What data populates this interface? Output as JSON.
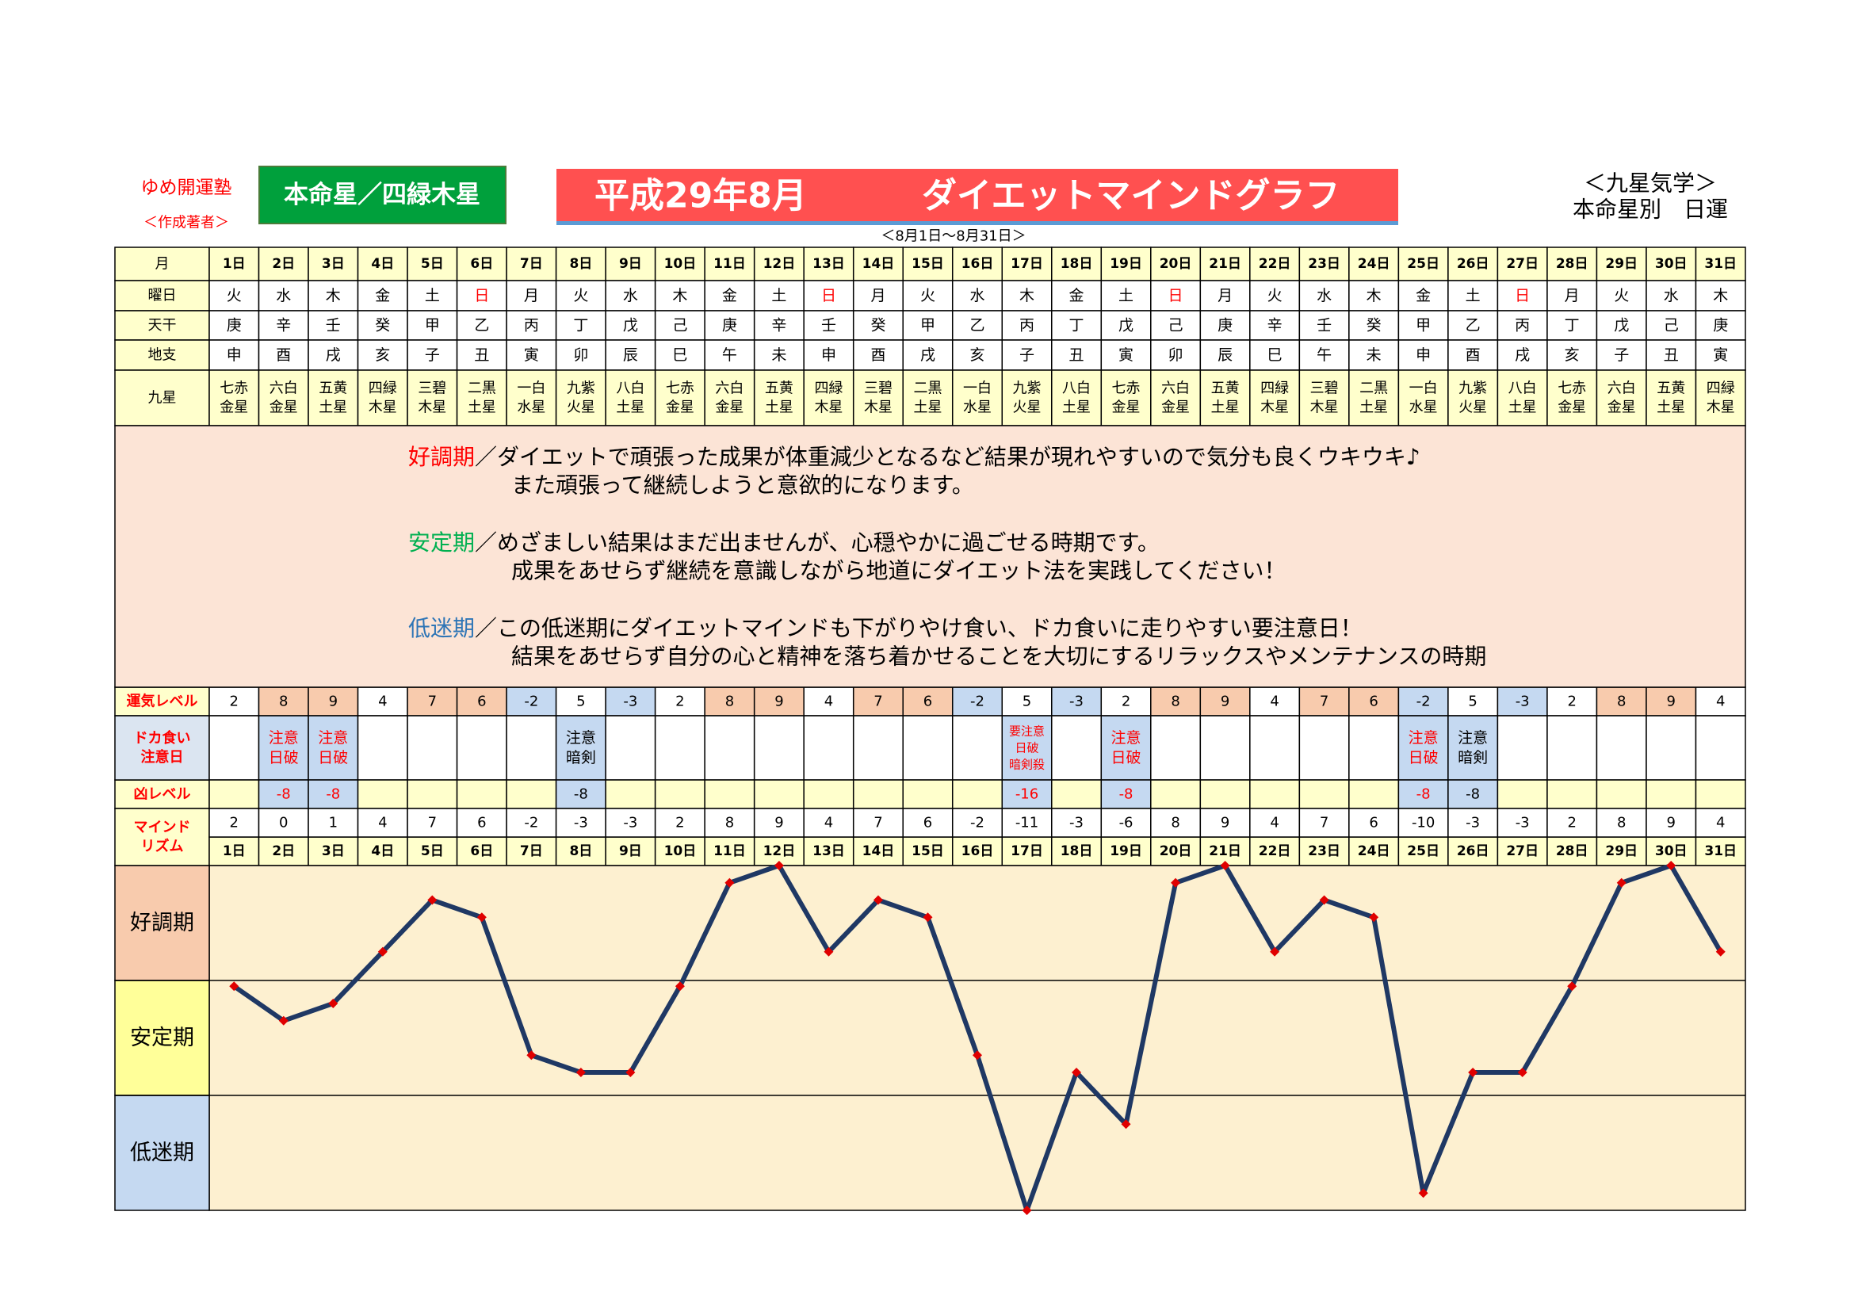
{
  "header": {
    "school": "ゆめ開運塾",
    "author": "＜作成著者＞",
    "honmei": "本命星／四緑木星",
    "period": "平成29年8月",
    "title": "ダイエットマインドグラフ",
    "range": "＜8月1日～8月31日＞",
    "system": "＜九星気学＞",
    "kind": "本命星別　日運"
  },
  "table": {
    "labels": {
      "day": "月",
      "weekday": "曜日",
      "stem": "天干",
      "branch": "地支",
      "star": "九星",
      "fortune": "運気レベル",
      "binge": [
        "ドカ食い",
        "注意日"
      ],
      "bad": "凶レベル",
      "mind": [
        "マインド",
        "リズム"
      ]
    },
    "weekdays": [
      "火",
      "水",
      "木",
      "金",
      "土",
      {
        "text": "日",
        "color": "#ff0000"
      },
      "月",
      "火",
      "水",
      "木",
      "金",
      "土",
      {
        "text": "日",
        "color": "#ff0000"
      },
      "月",
      "火",
      "水",
      "木",
      "金",
      "土",
      {
        "text": "日",
        "color": "#ff0000"
      },
      "月",
      "火",
      "水",
      "木",
      "金",
      "土",
      {
        "text": "日",
        "color": "#ff0000"
      },
      "月",
      "火",
      "水",
      "木"
    ],
    "stems": [
      "庚",
      "辛",
      "壬",
      "癸",
      "甲",
      "乙",
      "丙",
      "丁",
      "戊",
      "己",
      "庚",
      "辛",
      "壬",
      "癸",
      "甲",
      "乙",
      "丙",
      "丁",
      "戊",
      "己",
      "庚",
      "辛",
      "壬",
      "癸",
      "甲",
      "乙",
      "丙",
      "丁",
      "戊",
      "己",
      "庚"
    ],
    "branches": [
      "申",
      "酉",
      "戌",
      "亥",
      "子",
      "丑",
      "寅",
      "卯",
      "辰",
      "巳",
      "午",
      "未",
      "申",
      "酉",
      "戌",
      "亥",
      "子",
      "丑",
      "寅",
      "卯",
      "辰",
      "巳",
      "午",
      "未",
      "申",
      "酉",
      "戌",
      "亥",
      "子",
      "丑",
      "寅"
    ],
    "stars": [
      [
        "七赤",
        "金星"
      ],
      [
        "六白",
        "金星"
      ],
      [
        "五黄",
        "土星"
      ],
      [
        "四緑",
        "木星"
      ],
      [
        "三碧",
        "木星"
      ],
      [
        "二黒",
        "土星"
      ],
      [
        "一白",
        "水星"
      ],
      [
        "九紫",
        "火星"
      ],
      [
        "八白",
        "土星"
      ],
      [
        "七赤",
        "金星"
      ],
      [
        "六白",
        "金星"
      ],
      [
        "五黄",
        "土星"
      ],
      [
        "四緑",
        "木星"
      ],
      [
        "三碧",
        "木星"
      ],
      [
        "二黒",
        "土星"
      ],
      [
        "一白",
        "水星"
      ],
      [
        "九紫",
        "火星"
      ],
      [
        "八白",
        "土星"
      ],
      [
        "七赤",
        "金星"
      ],
      [
        "六白",
        "金星"
      ],
      [
        "五黄",
        "土星"
      ],
      [
        "四緑",
        "木星"
      ],
      [
        "三碧",
        "木星"
      ],
      [
        "二黒",
        "土星"
      ],
      [
        "一白",
        "水星"
      ],
      [
        "九紫",
        "火星"
      ],
      [
        "八白",
        "土星"
      ],
      [
        "七赤",
        "金星"
      ],
      [
        "六白",
        "金星"
      ],
      [
        "五黄",
        "土星"
      ],
      [
        "四緑",
        "木星"
      ]
    ],
    "fortune": [
      2,
      8,
      9,
      4,
      7,
      6,
      -2,
      5,
      -3,
      2,
      8,
      9,
      4,
      7,
      6,
      -2,
      5,
      -3,
      2,
      8,
      9,
      4,
      7,
      6,
      -2,
      5,
      -3,
      2,
      8,
      9,
      4
    ],
    "fortune_colors": [
      "#ffffff",
      "#f8cbad",
      "#f8cbad",
      "#ffffff",
      "#f8cbad",
      "#f8cbad",
      "#c5d9f1",
      "#ffffff",
      "#c5d9f1",
      "#ffffff",
      "#f8cbad",
      "#f8cbad",
      "#ffffff",
      "#f8cbad",
      "#f8cbad",
      "#c5d9f1",
      "#ffffff",
      "#c5d9f1",
      "#ffffff",
      "#f8cbad",
      "#f8cbad",
      "#ffffff",
      "#f8cbad",
      "#f8cbad",
      "#c5d9f1",
      "#ffffff",
      "#c5d9f1",
      "#ffffff",
      "#f8cbad",
      "#f8cbad",
      "#ffffff"
    ],
    "binge": [
      null,
      {
        "lines": [
          "注意",
          "日破"
        ],
        "color": "#ff0000"
      },
      {
        "lines": [
          "注意",
          "日破"
        ],
        "color": "#ff0000"
      },
      null,
      null,
      null,
      null,
      {
        "lines": [
          "注意",
          "暗剣"
        ],
        "color": "#000000"
      },
      null,
      null,
      null,
      null,
      null,
      null,
      null,
      null,
      {
        "lines": [
          "要注意",
          "日破",
          "暗剣殺"
        ],
        "color": "#ff0000"
      },
      null,
      {
        "lines": [
          "注意",
          "日破"
        ],
        "color": "#ff0000"
      },
      null,
      null,
      null,
      null,
      null,
      {
        "lines": [
          "注意",
          "日破"
        ],
        "color": "#ff0000"
      },
      {
        "lines": [
          "注意",
          "暗剣"
        ],
        "color": "#000000"
      },
      null,
      null,
      null,
      null,
      null
    ],
    "bad": [
      null,
      {
        "value": -8,
        "color": "#ff0000"
      },
      {
        "value": -8,
        "color": "#ff0000"
      },
      null,
      null,
      null,
      null,
      {
        "value": -8,
        "color": "#000000"
      },
      null,
      null,
      null,
      null,
      null,
      null,
      null,
      null,
      {
        "value": -16,
        "color": "#ff0000"
      },
      null,
      {
        "value": -8,
        "color": "#ff0000"
      },
      null,
      null,
      null,
      null,
      null,
      {
        "value": -8,
        "color": "#ff0000"
      },
      {
        "value": -8,
        "color": "#000000"
      },
      null,
      null,
      null,
      null,
      null
    ]
  },
  "description": [
    {
      "label": "好調期",
      "color": "#ff0000",
      "band_color": "#f8cbad",
      "lines": [
        "／ダイエットで頑張った成果が体重減少となるなど結果が現れやすいので気分も良くウキウキ♪",
        "また頑張って継続しようと意欲的になります。"
      ]
    },
    {
      "label": "安定期",
      "color": "#00b050",
      "band_color": "#ffff99",
      "lines": [
        "／めざましい結果はまだ出ませんが、心穏やかに過ごせる時期です。",
        "成果をあせらず継続を意識しながら地道にダイエット法を実践してください！"
      ]
    },
    {
      "label": "低迷期",
      "color": "#2e75b6",
      "band_color": "#c5d9f1",
      "lines": [
        "／この低迷期にダイエットマインドも下がりやけ食い、ドカ食いに走りやすい要注意日！",
        "結果をあせらず自分の心と精神を落ち着かせることを大切にするリラックスやメンテナンスの時期"
      ]
    }
  ],
  "chart_data": {
    "type": "line",
    "categories": [
      "1日",
      "2日",
      "3日",
      "4日",
      "5日",
      "6日",
      "7日",
      "8日",
      "9日",
      "10日",
      "11日",
      "12日",
      "13日",
      "14日",
      "15日",
      "16日",
      "17日",
      "18日",
      "19日",
      "20日",
      "21日",
      "22日",
      "23日",
      "24日",
      "25日",
      "26日",
      "27日",
      "28日",
      "29日",
      "30日",
      "31日"
    ],
    "values": [
      2,
      0,
      1,
      4,
      7,
      6,
      -2,
      -3,
      -3,
      2,
      8,
      9,
      4,
      7,
      6,
      -2,
      -11,
      -3,
      -6,
      8,
      9,
      4,
      7,
      6,
      -10,
      -3,
      -3,
      2,
      8,
      9,
      4
    ],
    "ylim": [
      -11,
      9
    ],
    "color": "#1f3864",
    "marker_color": "#e00000"
  }
}
